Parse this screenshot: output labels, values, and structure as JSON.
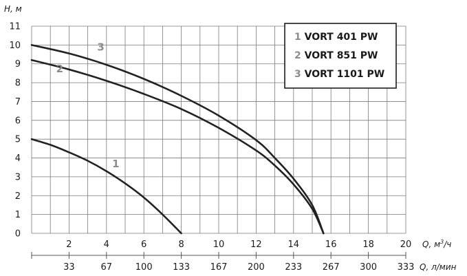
{
  "chart_data": {
    "type": "line",
    "ylabel": "H, м",
    "xlabel_primary": "Q, м³/ч",
    "xlabel_secondary": "Q, л/мин",
    "xlabel_primary_base": "Q, м",
    "xlabel_primary_sup": "3",
    "xlabel_primary_unit": "/ч",
    "xlim": [
      0,
      20
    ],
    "ylim": [
      0,
      11
    ],
    "grid": true,
    "legend_position": "top-right",
    "x_ticks": [
      "2",
      "4",
      "6",
      "8",
      "10",
      "12",
      "14",
      "16",
      "18",
      "20"
    ],
    "x_tick_values": [
      2,
      4,
      6,
      8,
      10,
      12,
      14,
      16,
      18,
      20
    ],
    "x2_ticks": [
      "33",
      "67",
      "100",
      "133",
      "167",
      "200",
      "233",
      "267",
      "300",
      "333"
    ],
    "y_ticks": [
      "0",
      "1",
      "2",
      "3",
      "4",
      "5",
      "6",
      "7",
      "8",
      "9",
      "10",
      "11"
    ],
    "y_tick_values": [
      0,
      1,
      2,
      3,
      4,
      5,
      6,
      7,
      8,
      9,
      10,
      11
    ],
    "series": [
      {
        "number": "1",
        "name": "VORT 401 PW",
        "x": [
          0,
          1,
          2,
          3,
          4,
          5,
          6,
          7,
          8
        ],
        "y": [
          5.0,
          4.7,
          4.3,
          3.85,
          3.3,
          2.65,
          1.9,
          1.0,
          0.0
        ],
        "label_at": [
          4.5,
          3.5
        ]
      },
      {
        "number": "2",
        "name": "VORT 851 PW",
        "x": [
          0,
          2,
          4,
          6,
          8,
          10,
          12,
          13,
          14,
          15,
          15.6
        ],
        "y": [
          9.2,
          8.7,
          8.1,
          7.4,
          6.6,
          5.6,
          4.4,
          3.6,
          2.6,
          1.3,
          0.0
        ],
        "label_at": [
          1.5,
          8.55
        ]
      },
      {
        "number": "3",
        "name": "VORT 1101 PW",
        "x": [
          0,
          2,
          4,
          6,
          8,
          10,
          12,
          13,
          14,
          15,
          15.6
        ],
        "y": [
          10.0,
          9.55,
          8.95,
          8.2,
          7.3,
          6.25,
          4.95,
          4.0,
          2.9,
          1.5,
          0.0
        ],
        "label_at": [
          3.7,
          9.7
        ]
      }
    ]
  }
}
